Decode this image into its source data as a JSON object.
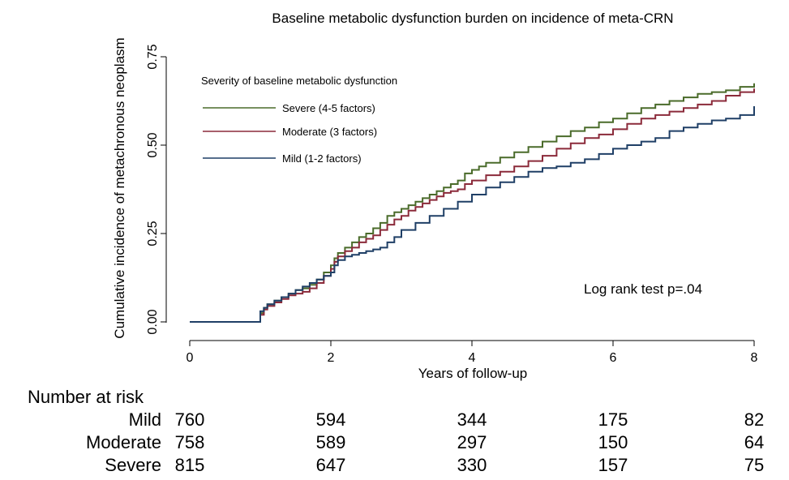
{
  "chart_data": {
    "type": "line",
    "step": true,
    "title": "Baseline metabolic dysfunction burden on incidence of meta-CRN",
    "xlabel": "Years of follow-up",
    "ylabel": "Cumulative incidence of metachronous neoplasm",
    "xlim": [
      0,
      8
    ],
    "ylim": [
      0,
      0.75
    ],
    "xticks": [
      0,
      2,
      4,
      6,
      8
    ],
    "yticks": [
      0,
      0.25,
      0.5,
      0.75
    ],
    "ytick_labels": [
      "0.00",
      "0.25",
      "0.50",
      "0.75"
    ],
    "grid": false,
    "legend": {
      "title": "Severity of baseline metabolic dysfunction",
      "placement": "top-left"
    },
    "annotation": "Log rank test p=.04",
    "series": [
      {
        "name": "Severe (4-5 factors)",
        "color": "#4a6b2a",
        "x": [
          0,
          1.0,
          1.0,
          1.05,
          1.1,
          1.2,
          1.3,
          1.4,
          1.5,
          1.6,
          1.7,
          1.8,
          1.9,
          2.0,
          2.05,
          2.1,
          2.2,
          2.3,
          2.4,
          2.5,
          2.6,
          2.7,
          2.8,
          2.9,
          3.0,
          3.1,
          3.2,
          3.3,
          3.4,
          3.5,
          3.6,
          3.7,
          3.8,
          3.9,
          4.0,
          4.1,
          4.2,
          4.4,
          4.6,
          4.8,
          5.0,
          5.2,
          5.4,
          5.6,
          5.8,
          6.0,
          6.2,
          6.4,
          6.6,
          6.8,
          7.0,
          7.2,
          7.4,
          7.6,
          7.8,
          8.0
        ],
        "y": [
          0,
          0,
          0.025,
          0.04,
          0.05,
          0.06,
          0.07,
          0.08,
          0.09,
          0.095,
          0.105,
          0.12,
          0.14,
          0.16,
          0.18,
          0.195,
          0.21,
          0.225,
          0.24,
          0.25,
          0.265,
          0.28,
          0.3,
          0.31,
          0.32,
          0.33,
          0.34,
          0.35,
          0.36,
          0.37,
          0.38,
          0.39,
          0.4,
          0.42,
          0.43,
          0.44,
          0.45,
          0.465,
          0.48,
          0.495,
          0.51,
          0.525,
          0.54,
          0.55,
          0.565,
          0.575,
          0.59,
          0.605,
          0.615,
          0.625,
          0.635,
          0.645,
          0.65,
          0.655,
          0.665,
          0.675
        ]
      },
      {
        "name": "Moderate (3 factors)",
        "color": "#8b2a3a",
        "x": [
          0,
          1.0,
          1.0,
          1.05,
          1.1,
          1.2,
          1.3,
          1.4,
          1.5,
          1.6,
          1.7,
          1.8,
          1.9,
          2.0,
          2.05,
          2.1,
          2.2,
          2.3,
          2.4,
          2.5,
          2.6,
          2.7,
          2.8,
          2.9,
          3.0,
          3.1,
          3.2,
          3.3,
          3.4,
          3.5,
          3.6,
          3.7,
          3.8,
          3.9,
          4.0,
          4.2,
          4.4,
          4.6,
          4.8,
          5.0,
          5.2,
          5.4,
          5.6,
          5.8,
          6.0,
          6.2,
          6.4,
          6.6,
          6.8,
          7.0,
          7.2,
          7.4,
          7.6,
          7.8,
          8.0
        ],
        "y": [
          0,
          0,
          0.02,
          0.035,
          0.045,
          0.055,
          0.065,
          0.075,
          0.08,
          0.085,
          0.095,
          0.11,
          0.13,
          0.15,
          0.17,
          0.185,
          0.2,
          0.21,
          0.225,
          0.235,
          0.245,
          0.26,
          0.275,
          0.29,
          0.3,
          0.315,
          0.325,
          0.335,
          0.345,
          0.355,
          0.365,
          0.37,
          0.375,
          0.39,
          0.4,
          0.415,
          0.425,
          0.44,
          0.455,
          0.47,
          0.49,
          0.505,
          0.52,
          0.53,
          0.545,
          0.56,
          0.575,
          0.585,
          0.595,
          0.605,
          0.615,
          0.625,
          0.64,
          0.65,
          0.66
        ]
      },
      {
        "name": "Mild (1-2 factors)",
        "color": "#1f3f66",
        "x": [
          0,
          1.0,
          1.0,
          1.05,
          1.1,
          1.2,
          1.3,
          1.4,
          1.5,
          1.6,
          1.7,
          1.8,
          1.9,
          2.0,
          2.05,
          2.1,
          2.2,
          2.3,
          2.4,
          2.5,
          2.6,
          2.7,
          2.8,
          2.9,
          3.0,
          3.2,
          3.4,
          3.6,
          3.8,
          4.0,
          4.2,
          4.4,
          4.6,
          4.8,
          5.0,
          5.2,
          5.4,
          5.6,
          5.8,
          6.0,
          6.2,
          6.4,
          6.6,
          6.8,
          7.0,
          7.2,
          7.4,
          7.6,
          7.8,
          8.0
        ],
        "y": [
          0,
          0,
          0.03,
          0.04,
          0.05,
          0.06,
          0.07,
          0.08,
          0.09,
          0.1,
          0.11,
          0.12,
          0.13,
          0.14,
          0.16,
          0.175,
          0.185,
          0.19,
          0.195,
          0.2,
          0.205,
          0.21,
          0.225,
          0.24,
          0.26,
          0.28,
          0.3,
          0.32,
          0.34,
          0.36,
          0.38,
          0.395,
          0.41,
          0.425,
          0.435,
          0.44,
          0.45,
          0.46,
          0.475,
          0.49,
          0.5,
          0.51,
          0.52,
          0.54,
          0.55,
          0.56,
          0.57,
          0.575,
          0.585,
          0.61
        ]
      }
    ],
    "risk_table": {
      "title": "Number at risk",
      "times": [
        0,
        2,
        4,
        6,
        8
      ],
      "rows": [
        {
          "label": "Mild",
          "values": [
            "760",
            "594",
            "344",
            "175",
            "82"
          ]
        },
        {
          "label": "Moderate",
          "values": [
            "758",
            "589",
            "297",
            "150",
            "64"
          ]
        },
        {
          "label": "Severe",
          "values": [
            "815",
            "647",
            "330",
            "157",
            "75"
          ]
        }
      ]
    }
  }
}
